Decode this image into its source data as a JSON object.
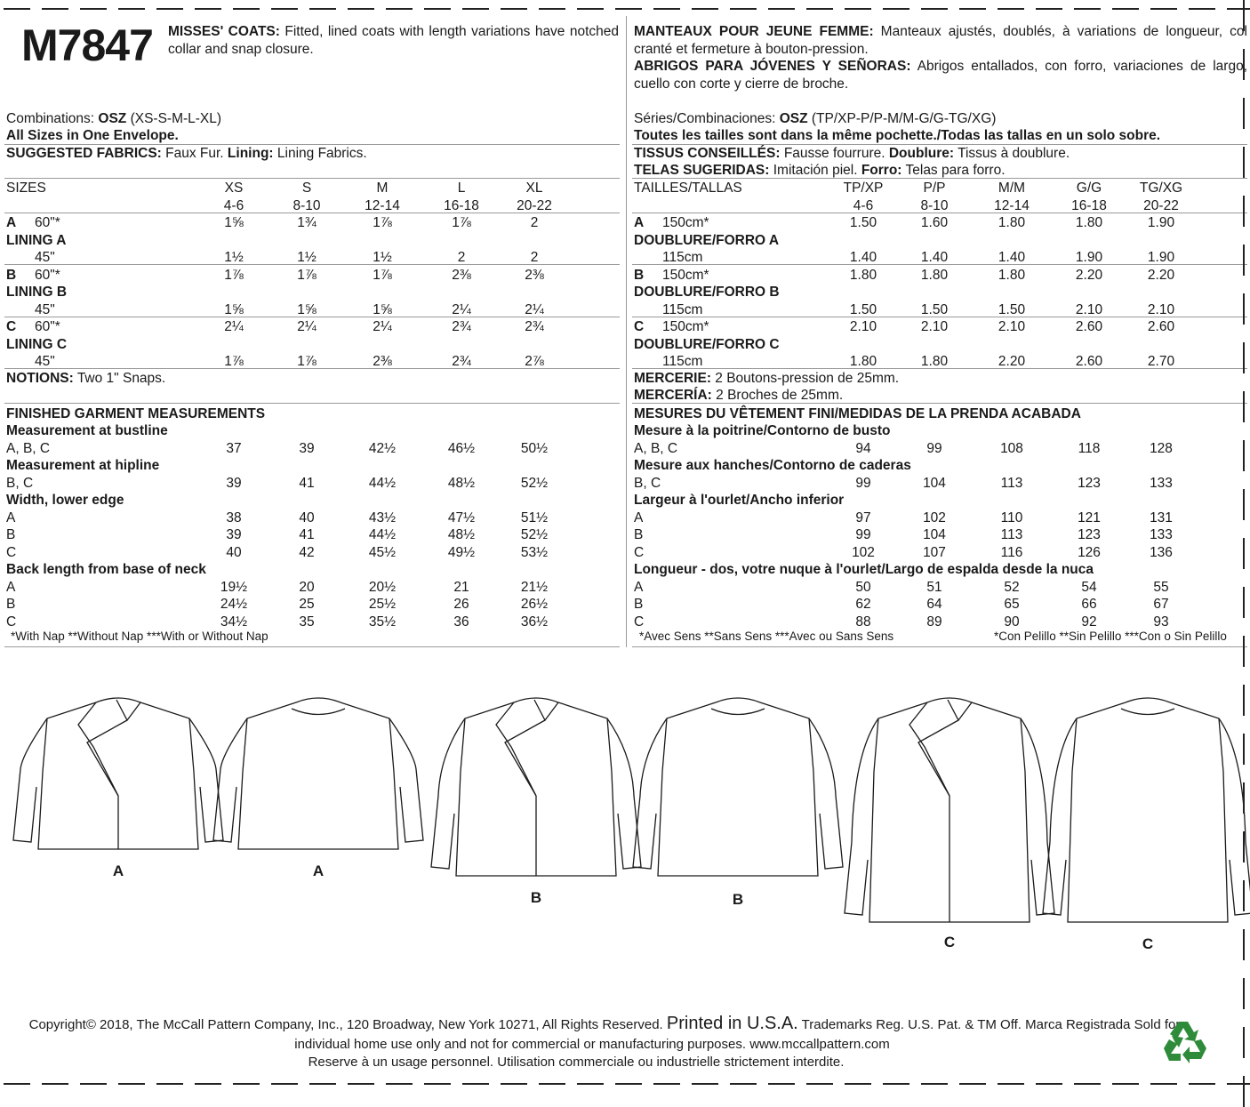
{
  "header": {
    "pattern_number": "M7847",
    "en_title": "MISSES' COATS:",
    "en_desc": "Fitted, lined coats with length variations have notched collar and snap closure.",
    "fr_title": "MANTEAUX POUR JEUNE FEMME:",
    "fr_desc": "Manteaux ajustés, doublés, à variations de longueur, col cranté et fermeture à bouton-pression.",
    "es_title": "ABRIGOS PARA JÓVENES Y SEÑORAS:",
    "es_desc": "Abrigos entallados, con forro, variaciones de largo, cuello con corte y cierre de broche."
  },
  "left": {
    "combinations_label": "Combinations:",
    "combinations_value": "OSZ",
    "combinations_sizes": "(XS-S-M-L-XL)",
    "all_sizes": "All Sizes in One Envelope.",
    "fabrics_label": "SUGGESTED FABRICS:",
    "fabrics_value": "Faux Fur.",
    "lining_label": "Lining:",
    "lining_value": "Lining Fabrics.",
    "table": [
      {
        "label": "SIZES",
        "values": [
          "XS",
          "S",
          "M",
          "L",
          "XL"
        ]
      },
      {
        "label": "",
        "values": [
          "4-6",
          "8-10",
          "12-14",
          "16-18",
          "20-22"
        ]
      },
      {
        "label": "A",
        "sub": "60\"*",
        "values": [
          "1⅝",
          "1¾",
          "1⅞",
          "1⅞",
          "2"
        ]
      },
      {
        "label": "LINING A",
        "bold": true,
        "values": []
      },
      {
        "label": "",
        "sub": "45\"",
        "values": [
          "1½",
          "1½",
          "1½",
          "2",
          "2"
        ]
      },
      {
        "label": "B",
        "sub": "60\"*",
        "values": [
          "1⅞",
          "1⅞",
          "1⅞",
          "2⅜",
          "2⅜"
        ]
      },
      {
        "label": "LINING B",
        "bold": true,
        "values": []
      },
      {
        "label": "",
        "sub": "45\"",
        "values": [
          "1⅝",
          "1⅝",
          "1⅝",
          "2¼",
          "2¼"
        ]
      },
      {
        "label": "C",
        "sub": "60\"*",
        "values": [
          "2¼",
          "2¼",
          "2¼",
          "2¾",
          "2¾"
        ]
      },
      {
        "label": "LINING C",
        "bold": true,
        "values": []
      },
      {
        "label": "",
        "sub": "45\"",
        "values": [
          "1⅞",
          "1⅞",
          "2⅜",
          "2¾",
          "2⅞"
        ]
      }
    ],
    "notions_label": "NOTIONS:",
    "notions_value": "Two 1\" Snaps.",
    "measurements": [
      {
        "label": "FINISHED GARMENT MEASUREMENTS",
        "bold": true,
        "values": []
      },
      {
        "label": "Measurement at bustline",
        "bold": true,
        "values": []
      },
      {
        "label": "A, B, C",
        "values": [
          "37",
          "39",
          "42½",
          "46½",
          "50½"
        ]
      },
      {
        "label": "Measurement at hipline",
        "bold": true,
        "values": []
      },
      {
        "label": "B, C",
        "values": [
          "39",
          "41",
          "44½",
          "48½",
          "52½"
        ]
      },
      {
        "label": "Width, lower edge",
        "bold": true,
        "values": []
      },
      {
        "label": "A",
        "values": [
          "38",
          "40",
          "43½",
          "47½",
          "51½"
        ]
      },
      {
        "label": "B",
        "values": [
          "39",
          "41",
          "44½",
          "48½",
          "52½"
        ]
      },
      {
        "label": "C",
        "values": [
          "40",
          "42",
          "45½",
          "49½",
          "53½"
        ]
      },
      {
        "label": "Back length from base of neck",
        "bold": true,
        "values": []
      },
      {
        "label": "A",
        "values": [
          "19½",
          "20",
          "20½",
          "21",
          "21½"
        ]
      },
      {
        "label": "B",
        "values": [
          "24½",
          "25",
          "25½",
          "26",
          "26½"
        ]
      },
      {
        "label": "C",
        "values": [
          "34½",
          "35",
          "35½",
          "36",
          "36½"
        ]
      }
    ],
    "footnote": "*With Nap **Without Nap ***With or Without Nap"
  },
  "right": {
    "combinations_label": "Séries/Combinaciones:",
    "combinations_value": "OSZ",
    "combinations_sizes": "(TP/XP-P/P-M/M-G/G-TG/XG)",
    "all_sizes": "Toutes les tailles sont dans la même pochette./Todas las tallas en un solo sobre.",
    "fr_fabrics_label": "TISSUS CONSEILLÉS:",
    "fr_fabrics_value": "Fausse fourrure.",
    "fr_lining_label": "Doublure:",
    "fr_lining_value": "Tissus à doublure.",
    "es_fabrics_label": "TELAS SUGERIDAS:",
    "es_fabrics_value": "Imitación piel.",
    "es_lining_label": "Forro:",
    "es_lining_value": "Telas para forro.",
    "table": [
      {
        "label": "TAILLES/TALLAS",
        "values": [
          "TP/XP",
          "P/P",
          "M/M",
          "G/G",
          "TG/XG"
        ]
      },
      {
        "label": "",
        "values": [
          "4-6",
          "8-10",
          "12-14",
          "16-18",
          "20-22"
        ]
      },
      {
        "label": "A",
        "sub": "150cm*",
        "values": [
          "1.50",
          "1.60",
          "1.80",
          "1.80",
          "1.90"
        ]
      },
      {
        "label": "DOUBLURE/FORRO A",
        "bold": true,
        "values": []
      },
      {
        "label": "",
        "sub": "115cm",
        "values": [
          "1.40",
          "1.40",
          "1.40",
          "1.90",
          "1.90"
        ]
      },
      {
        "label": "B",
        "sub": "150cm*",
        "values": [
          "1.80",
          "1.80",
          "1.80",
          "2.20",
          "2.20"
        ]
      },
      {
        "label": "DOUBLURE/FORRO B",
        "bold": true,
        "values": []
      },
      {
        "label": "",
        "sub": "115cm",
        "values": [
          "1.50",
          "1.50",
          "1.50",
          "2.10",
          "2.10"
        ]
      },
      {
        "label": "C",
        "sub": "150cm*",
        "values": [
          "2.10",
          "2.10",
          "2.10",
          "2.60",
          "2.60"
        ]
      },
      {
        "label": "DOUBLURE/FORRO C",
        "bold": true,
        "values": []
      },
      {
        "label": "",
        "sub": "115cm",
        "values": [
          "1.80",
          "1.80",
          "2.20",
          "2.60",
          "2.70"
        ]
      }
    ],
    "fr_notions_label": "MERCERIE:",
    "fr_notions_value": "2 Boutons-pression de 25mm.",
    "es_notions_label": "MERCERÍA:",
    "es_notions_value": "2 Broches de 25mm.",
    "measurements": [
      {
        "label": "MESURES DU VÊTEMENT FINI/MEDIDAS DE LA PRENDA ACABADA",
        "bold": true,
        "values": []
      },
      {
        "label": "Mesure à la poitrine/Contorno de busto",
        "bold": true,
        "values": []
      },
      {
        "label": "A, B, C",
        "values": [
          "94",
          "99",
          "108",
          "118",
          "128"
        ]
      },
      {
        "label": "Mesure aux hanches/Contorno de caderas",
        "bold": true,
        "values": []
      },
      {
        "label": "B, C",
        "values": [
          "99",
          "104",
          "113",
          "123",
          "133"
        ]
      },
      {
        "label": "Largeur à l'ourlet/Ancho inferior",
        "bold": true,
        "values": []
      },
      {
        "label": "A",
        "values": [
          "97",
          "102",
          "110",
          "121",
          "131"
        ]
      },
      {
        "label": "B",
        "values": [
          "99",
          "104",
          "113",
          "123",
          "133"
        ]
      },
      {
        "label": "C",
        "values": [
          "102",
          "107",
          "116",
          "126",
          "136"
        ]
      },
      {
        "label": "Longueur - dos, votre nuque à l'ourlet/Largo de espalda desde la nuca",
        "bold": true,
        "values": []
      },
      {
        "label": "A",
        "values": [
          "50",
          "51",
          "52",
          "54",
          "55"
        ]
      },
      {
        "label": "B",
        "values": [
          "62",
          "64",
          "65",
          "66",
          "67"
        ]
      },
      {
        "label": "C",
        "values": [
          "88",
          "89",
          "90",
          "92",
          "93"
        ]
      }
    ],
    "fr_footnote": "*Avec Sens **Sans Sens ***Avec ou Sans Sens",
    "es_footnote": "*Con Pelillo **Sin Pelillo ***Con o Sin Pelillo"
  },
  "views": [
    {
      "label": "A",
      "side": "front"
    },
    {
      "label": "A",
      "side": "back"
    },
    {
      "label": "B",
      "side": "front"
    },
    {
      "label": "B",
      "side": "back"
    },
    {
      "label": "C",
      "side": "front"
    },
    {
      "label": "C",
      "side": "back"
    }
  ],
  "footer": {
    "line1a": "Copyright© 2018, The McCall Pattern Company, Inc., 120 Broadway, New York 10271, All Rights Reserved.",
    "line1b": "Printed in U.S.A.",
    "line1c": "Trademarks Reg. U.S. Pat. & TM Off. Marca Registrada  Sold for",
    "line2": "individual home use only and not for commercial or manufacturing purposes. www.mccallpattern.com",
    "line3": "Reserve à un usage personnel. Utilisation commerciale ou industrielle strictement interdite.",
    "recycle_icon": "recycle-icon",
    "recycle_color": "#2e8b3a"
  }
}
